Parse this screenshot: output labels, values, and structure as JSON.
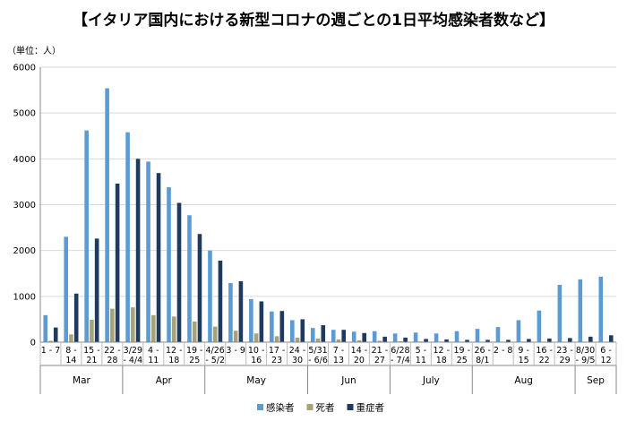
{
  "chart_data": {
    "type": "bar",
    "title": "【イタリア国内における新型コロナの週ごとの1日平均感染者数など】",
    "unit_label": "（単位：人）",
    "ylim": [
      0,
      6000
    ],
    "yticks": [
      0,
      1000,
      2000,
      3000,
      4000,
      5000,
      6000
    ],
    "grid": true,
    "legend_position": "bottom",
    "categories": [
      [
        "1 - 7",
        ""
      ],
      [
        "8 -",
        "14"
      ],
      [
        "15 -",
        "21"
      ],
      [
        "22 -",
        "28"
      ],
      [
        "3/29",
        "- 4/4"
      ],
      [
        "4 -",
        "11"
      ],
      [
        "12 -",
        "18"
      ],
      [
        "19 -",
        "25"
      ],
      [
        "4/26",
        "- 5/2"
      ],
      [
        "3 - 9",
        ""
      ],
      [
        "10 -",
        "16"
      ],
      [
        "17 -",
        "23"
      ],
      [
        "24 -",
        "30"
      ],
      [
        "5/31",
        "- 6/6"
      ],
      [
        "7 -",
        "13"
      ],
      [
        "14 -",
        "20"
      ],
      [
        "21 -",
        "27"
      ],
      [
        "6/28",
        "- 7/4"
      ],
      [
        "5 -",
        "11"
      ],
      [
        "12 -",
        "18"
      ],
      [
        "19 -",
        "25"
      ],
      [
        "26 -",
        "8/1"
      ],
      [
        "2 - 8",
        ""
      ],
      [
        "9 -",
        "15"
      ],
      [
        "16 -",
        "22"
      ],
      [
        "23 -",
        "29"
      ],
      [
        "8/30",
        "- 9/5"
      ],
      [
        "6 -",
        "12"
      ]
    ],
    "months": [
      {
        "label": "Mar",
        "start": 0,
        "count": 4
      },
      {
        "label": "Apr",
        "start": 4,
        "count": 4
      },
      {
        "label": "May",
        "start": 8,
        "count": 5
      },
      {
        "label": "Jun",
        "start": 13,
        "count": 4
      },
      {
        "label": "July",
        "start": 17,
        "count": 4
      },
      {
        "label": "Aug",
        "start": 21,
        "count": 5
      },
      {
        "label": "Sep",
        "start": 26,
        "count": 2
      }
    ],
    "series": [
      {
        "name": "感染者",
        "color": "#5B9BD5",
        "values": [
          590,
          2300,
          4620,
          5540,
          4580,
          3940,
          3380,
          2770,
          2000,
          1290,
          940,
          670,
          480,
          310,
          270,
          230,
          240,
          190,
          210,
          190,
          240,
          290,
          330,
          480,
          690,
          1250,
          1370,
          1430
        ]
      },
      {
        "name": "死者",
        "color": "#A8A27A",
        "values": [
          30,
          170,
          490,
          730,
          760,
          590,
          560,
          450,
          340,
          250,
          190,
          130,
          100,
          80,
          60,
          40,
          30,
          20,
          15,
          12,
          10,
          8,
          8,
          12,
          8,
          10,
          10,
          10
        ]
      },
      {
        "name": "重症者",
        "color": "#1F3A5F",
        "values": [
          320,
          1060,
          2260,
          3460,
          4000,
          3690,
          3040,
          2360,
          1780,
          1330,
          890,
          680,
          500,
          370,
          270,
          200,
          120,
          100,
          70,
          60,
          50,
          50,
          50,
          70,
          80,
          90,
          120,
          150
        ]
      }
    ]
  }
}
